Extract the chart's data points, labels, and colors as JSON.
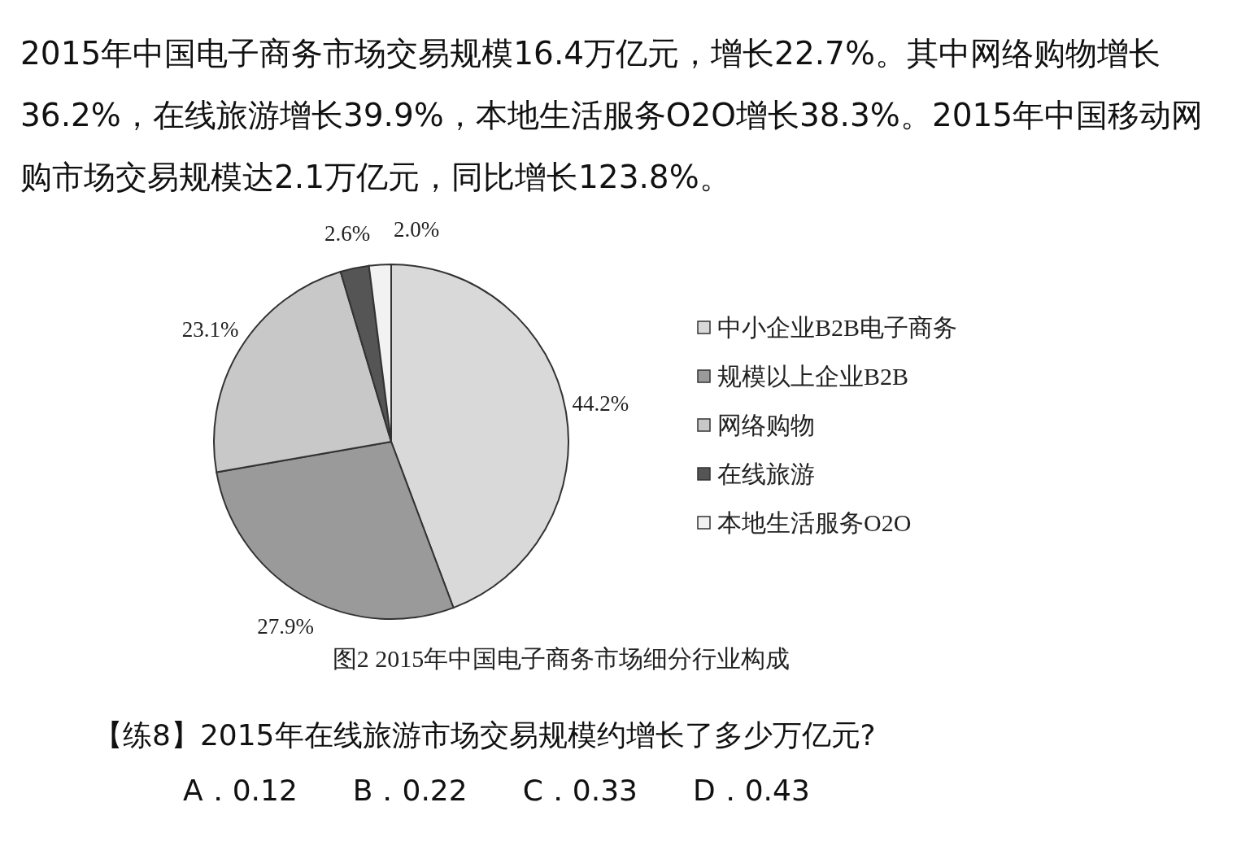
{
  "chart_data": {
    "type": "pie",
    "title": "图2 2015年中国电子商务市场细分行业构成",
    "subtitle": "2015年中国电子商务市场交易规模16.4万亿元，增长22.7%。其中网络购物增长36.2%，在线旅游增长39.9%，本地生活服务O2O增长38.3%。2015年中国移动网购市场交易规模达2.1万亿元，同比增长123.8%。",
    "categories": [
      "中小企业B2B电子商务",
      "规模以上企业B2B",
      "网络购物",
      "在线旅游",
      "本地生活服务O2O"
    ],
    "values": [
      44.2,
      27.9,
      23.1,
      2.6,
      2.0
    ],
    "value_labels": [
      "44.2%",
      "27.9%",
      "23.1%",
      "2.6%",
      "2.0%"
    ],
    "colors": [
      "#d9d9d9",
      "#9a9a9a",
      "#c8c8c8",
      "#555555",
      "#f2f2f2"
    ],
    "legend": "right",
    "annotations": [
      "【练8】2015年在线旅游市场交易规模约增长了多少万亿元?",
      "A．0.12",
      "B．0.22",
      "C．0.33",
      "D．0.43"
    ]
  }
}
